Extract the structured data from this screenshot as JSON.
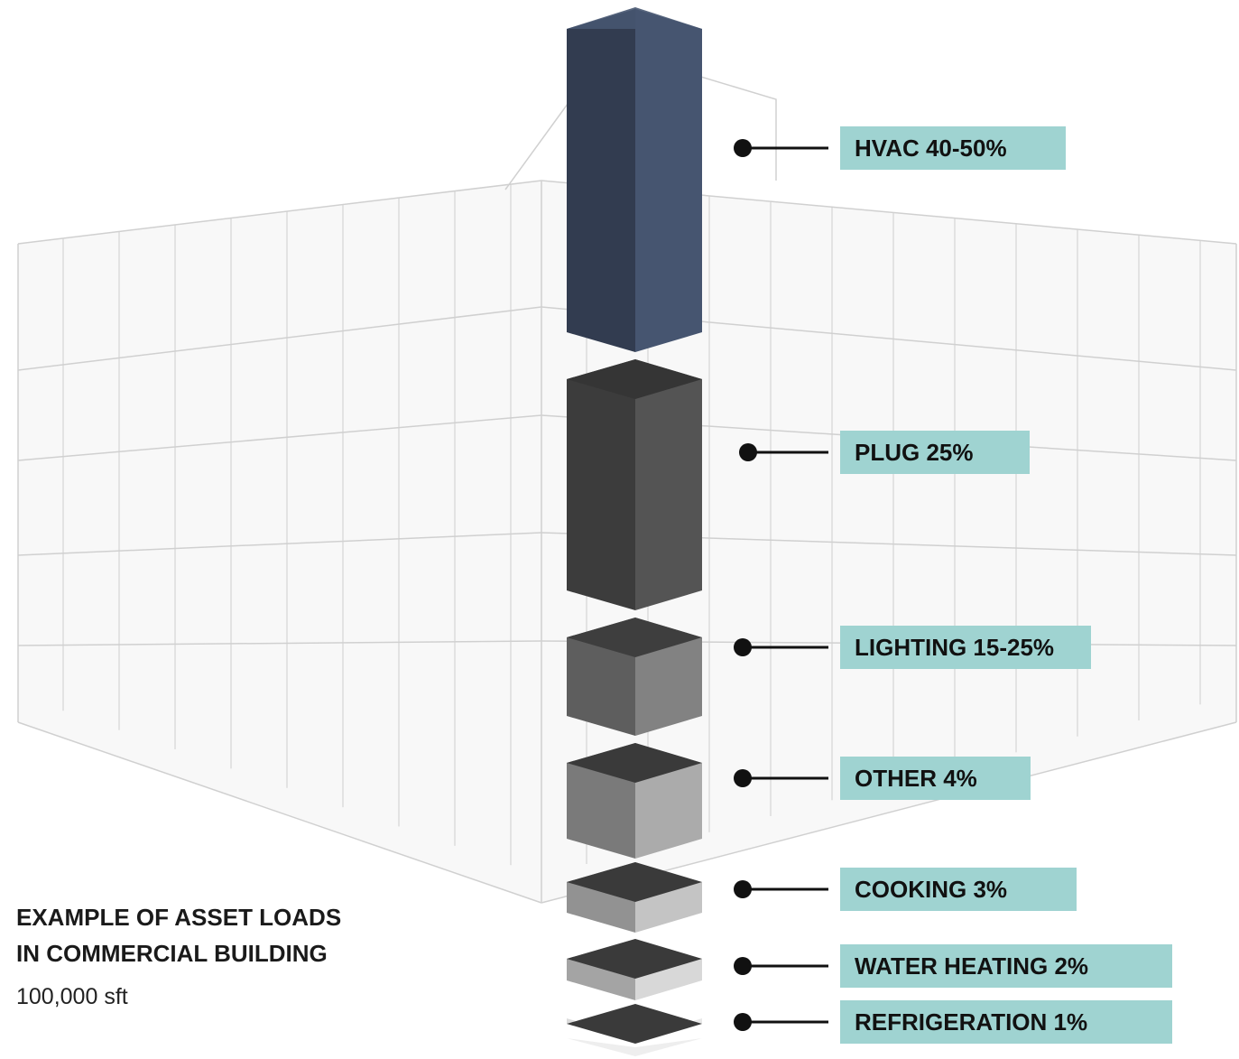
{
  "caption": {
    "title_line1": "EXAMPLE OF ASSET LOADS",
    "title_line2": "IN COMMERCIAL BUILDING",
    "subtitle": "100,000 sft"
  },
  "loads": [
    {
      "id": "hvac",
      "label": "HVAC 40-50%",
      "share_low": 40,
      "share_high": 50,
      "left": "#323c50",
      "right": "#465570",
      "top": "#3a4660"
    },
    {
      "id": "plug",
      "label": "PLUG 25%",
      "share_low": 25,
      "share_high": 25,
      "left": "#3c3c3c",
      "right": "#545454",
      "top": "#353535"
    },
    {
      "id": "lighting",
      "label": "LIGHTING 15-25%",
      "share_low": 15,
      "share_high": 25,
      "left": "#5e5e5e",
      "right": "#828282",
      "top": "#3e3e3e"
    },
    {
      "id": "other",
      "label": "OTHER 4%",
      "share_low": 4,
      "share_high": 4,
      "left": "#7a7a7a",
      "right": "#ababab",
      "top": "#3a3a3a"
    },
    {
      "id": "cooking",
      "label": "COOKING 3%",
      "share_low": 3,
      "share_high": 3,
      "left": "#929292",
      "right": "#c4c4c4",
      "top": "#3a3a3a"
    },
    {
      "id": "water-heating",
      "label": "WATER HEATING 2%",
      "share_low": 2,
      "share_high": 2,
      "left": "#a4a4a4",
      "right": "#d8d8d8",
      "top": "#3a3a3a"
    },
    {
      "id": "refrigeration",
      "label": "REFRIGERATION 1%",
      "share_low": 1,
      "share_high": 1,
      "left": "#dcdcdc",
      "right": "#e8e8e8",
      "top": "#3a3a3a"
    }
  ],
  "colors": {
    "label_bg": "#9fd3d1",
    "connector": "#111111",
    "building_line": "#c8c8c8",
    "building_fill": "#f1f1f1"
  }
}
